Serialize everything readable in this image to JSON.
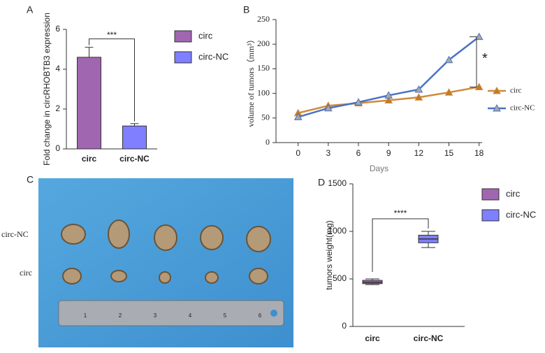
{
  "chart_data": [
    {
      "type": "bar",
      "panel": "A",
      "ylabel": "Fold change in circRHOBTB3 expression",
      "categories": [
        "circ",
        "circ-NC"
      ],
      "values": [
        4.6,
        1.15
      ],
      "errors": [
        0.5,
        0.12
      ],
      "colors": [
        "#a066b0",
        "#7f7fff"
      ],
      "ylim": [
        0,
        6
      ],
      "yticks": [
        0,
        2,
        4,
        6
      ],
      "significance": "***"
    },
    {
      "type": "line",
      "panel": "B",
      "xlabel": "Days",
      "ylabel": "volume of tumors（mm³）",
      "x": [
        0,
        3,
        6,
        9,
        12,
        15,
        18
      ],
      "xlim": [
        -2.2,
        18.3
      ],
      "xticks": [
        0,
        3,
        6,
        9,
        12,
        15,
        18
      ],
      "ylim": [
        0,
        250
      ],
      "yticks": [
        0,
        50,
        100,
        150,
        200,
        250
      ],
      "significance": "*",
      "series": [
        {
          "name": "circ",
          "color": "#d08a3a",
          "marker_color": "#c07a28",
          "values": [
            60,
            75,
            80,
            86,
            92,
            102,
            113
          ]
        },
        {
          "name": "circ-NC",
          "color": "#4a72c4",
          "marker_color": "#a8a8a8",
          "values": [
            52,
            70,
            82,
            96,
            108,
            168,
            215
          ]
        }
      ]
    },
    {
      "type": "box",
      "panel": "D",
      "ylabel": "tumors weight(mg)",
      "categories": [
        "circ",
        "circ-NC"
      ],
      "colors": [
        "#a066b0",
        "#7f7fff"
      ],
      "min": [
        440,
        830
      ],
      "q1": [
        450,
        880
      ],
      "median": [
        465,
        920
      ],
      "q3": [
        485,
        960
      ],
      "max": [
        500,
        1000
      ],
      "ylim": [
        0,
        1500
      ],
      "yticks": [
        0,
        500,
        1000,
        1500
      ],
      "significance": "****"
    }
  ],
  "photo": {
    "panel": "C",
    "row_labels": [
      "circ-NC",
      "circ"
    ],
    "ruler_labels": [
      "1",
      "2",
      "3",
      "4",
      "5",
      "6"
    ]
  }
}
